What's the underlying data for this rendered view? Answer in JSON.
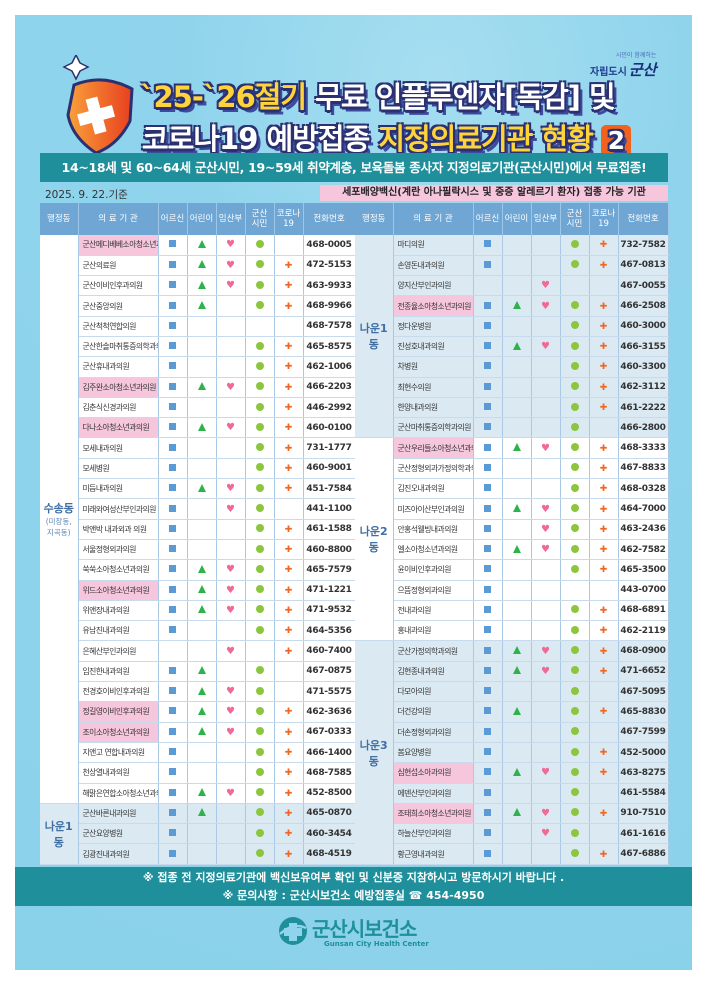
{
  "logo": {
    "slogan": "시민이 함께하는",
    "city": "자립도시",
    "brand": "군산"
  },
  "title": {
    "line1_a": "`25-`26절기",
    "line1_b": " 무료 인플루엔자[독감] 및",
    "line2_a": "코로나19 예방접종 ",
    "line2_b": "지정의료기관 현황",
    "badge": "2"
  },
  "banner": "14~18세 및 60~64세 군산시민, 19~59세 취약계층, 보육돌봄 종사자  지정의료기관(군산시민)에서 무료접종!",
  "date": "2025. 9. 22.기준",
  "egg_note": "세포배양백신(계란 아나필락시스 및 중증 알레르기 환자) 접종 가능 기관",
  "headers": [
    "행정동",
    "의 료 기 관",
    "어르신",
    "어린이",
    "임산부",
    "군산\n시민",
    "코로나\n19",
    "전화번호"
  ],
  "colors": {
    "elder": "#5b9bd5",
    "child": "#2db34a",
    "pregnant": "#f06a93",
    "citizen": "#8cc63f",
    "covid": "#f26522",
    "highlight": "#f6c6dc",
    "banner": "#1f8f9b"
  },
  "marks_legend": {
    "elder": "square-icon",
    "child": "triangle-icon",
    "pregnant": "heart-icon",
    "citizen": "circle-icon",
    "covid": "cross-icon"
  },
  "left": [
    {
      "dong": "수송동",
      "sub": "(미장동,\n지곡동)",
      "shade": "white",
      "rows": [
        {
          "name": "군산메디베베소아청소년과의원",
          "m": [
            1,
            1,
            1,
            1,
            0
          ],
          "phone": "468-0005",
          "hl": true
        },
        {
          "name": "군산의료원",
          "m": [
            1,
            1,
            1,
            1,
            1
          ],
          "phone": "472-5153"
        },
        {
          "name": "군산이비인후과의원",
          "m": [
            1,
            1,
            1,
            1,
            1
          ],
          "phone": "463-9933"
        },
        {
          "name": "군산중앙의원",
          "m": [
            1,
            1,
            0,
            1,
            1
          ],
          "phone": "468-9966"
        },
        {
          "name": "군산척척연합의원",
          "m": [
            1,
            0,
            0,
            0,
            0
          ],
          "phone": "468-7578"
        },
        {
          "name": "군산한솔마취통증의학과의원",
          "m": [
            1,
            0,
            0,
            1,
            1
          ],
          "phone": "465-8575"
        },
        {
          "name": "군산휴내과의원",
          "m": [
            1,
            0,
            0,
            1,
            1
          ],
          "phone": "462-1006"
        },
        {
          "name": "김주완소아청소년과의원",
          "m": [
            1,
            1,
            1,
            1,
            1
          ],
          "phone": "466-2203",
          "hl": true
        },
        {
          "name": "김춘식신경과의원",
          "m": [
            1,
            0,
            0,
            1,
            1
          ],
          "phone": "446-2992"
        },
        {
          "name": "다나소아청소년과의원",
          "m": [
            1,
            1,
            1,
            1,
            1
          ],
          "phone": "460-0100",
          "hl": true
        },
        {
          "name": "모세내과의원",
          "m": [
            1,
            0,
            0,
            1,
            1
          ],
          "phone": "731-1777"
        },
        {
          "name": "모세병원",
          "m": [
            1,
            0,
            0,
            1,
            1
          ],
          "phone": "460-9001"
        },
        {
          "name": "미듬내과의원",
          "m": [
            1,
            1,
            1,
            1,
            1
          ],
          "phone": "451-7584"
        },
        {
          "name": "미래와여성산부인과의원",
          "m": [
            1,
            0,
            1,
            1,
            0
          ],
          "phone": "441-1100"
        },
        {
          "name": "박앤박 내과외과 의원",
          "m": [
            1,
            0,
            0,
            1,
            1
          ],
          "phone": "461-1588"
        },
        {
          "name": "서울정형외과의원",
          "m": [
            1,
            0,
            0,
            1,
            1
          ],
          "phone": "460-8800"
        },
        {
          "name": "쑥쑥소아청소년과의원",
          "m": [
            1,
            1,
            1,
            1,
            1
          ],
          "phone": "465-7579"
        },
        {
          "name": "위드소아청소년과의원",
          "m": [
            1,
            1,
            1,
            1,
            1
          ],
          "phone": "471-1221",
          "hl": true
        },
        {
          "name": "위앤장내과의원",
          "m": [
            1,
            1,
            1,
            1,
            1
          ],
          "phone": "471-9532"
        },
        {
          "name": "유남진내과의원",
          "m": [
            1,
            0,
            0,
            1,
            1
          ],
          "phone": "464-5356"
        },
        {
          "name": "은혜산부인과의원",
          "m": [
            0,
            0,
            1,
            0,
            1
          ],
          "phone": "460-7400"
        },
        {
          "name": "임진한내과의원",
          "m": [
            1,
            1,
            0,
            1,
            0
          ],
          "phone": "467-0875"
        },
        {
          "name": "전경호이비인후과의원",
          "m": [
            1,
            1,
            1,
            1,
            0
          ],
          "phone": "471-5575"
        },
        {
          "name": "정길영이비인후과의원",
          "m": [
            1,
            1,
            1,
            1,
            1
          ],
          "phone": "462-3636",
          "hl": true
        },
        {
          "name": "조이소아청소년과의원",
          "m": [
            1,
            1,
            1,
            1,
            1
          ],
          "phone": "467-0333",
          "hl": true
        },
        {
          "name": "지앤고 연합내과의원",
          "m": [
            1,
            0,
            0,
            1,
            1
          ],
          "phone": "466-1400"
        },
        {
          "name": "천상열내과의원",
          "m": [
            1,
            0,
            0,
            1,
            1
          ],
          "phone": "468-7585"
        },
        {
          "name": "해맑은연합소아청소년과의원",
          "m": [
            1,
            1,
            1,
            1,
            1
          ],
          "phone": "452-8500"
        }
      ]
    },
    {
      "dong": "나운1동",
      "sub": "",
      "shade": "blue",
      "rows": [
        {
          "name": "군산바른내과의원",
          "m": [
            1,
            1,
            0,
            1,
            1
          ],
          "phone": "465-0870"
        },
        {
          "name": "군산요양병원",
          "m": [
            1,
            0,
            0,
            1,
            1
          ],
          "phone": "460-3454"
        },
        {
          "name": "김광진내과의원",
          "m": [
            1,
            0,
            0,
            1,
            1
          ],
          "phone": "468-4519"
        }
      ]
    }
  ],
  "right": [
    {
      "dong": "나운1동",
      "sub": "",
      "shade": "blue",
      "rows": [
        {
          "name": "마디의원",
          "m": [
            1,
            0,
            0,
            1,
            1
          ],
          "phone": "732-7582"
        },
        {
          "name": "손영돈내과의원",
          "m": [
            1,
            0,
            0,
            1,
            1
          ],
          "phone": "467-0813"
        },
        {
          "name": "양지산부인과의원",
          "m": [
            0,
            0,
            1,
            0,
            0
          ],
          "phone": "467-0055"
        },
        {
          "name": "전종율소아청소년과의원",
          "m": [
            1,
            1,
            1,
            1,
            1
          ],
          "phone": "466-2508",
          "hl": true
        },
        {
          "name": "정다운병원",
          "m": [
            1,
            0,
            0,
            1,
            1
          ],
          "phone": "460-3000"
        },
        {
          "name": "진성호내과의원",
          "m": [
            1,
            1,
            1,
            1,
            1
          ],
          "phone": "466-3155"
        },
        {
          "name": "차병원",
          "m": [
            1,
            0,
            0,
            1,
            1
          ],
          "phone": "460-3300"
        },
        {
          "name": "최현수의원",
          "m": [
            1,
            0,
            0,
            1,
            1
          ],
          "phone": "462-3112"
        },
        {
          "name": "한양내과의원",
          "m": [
            1,
            0,
            0,
            1,
            1
          ],
          "phone": "461-2222"
        },
        {
          "name": "군산마취통증의학과의원",
          "m": [
            1,
            0,
            0,
            1,
            0
          ],
          "phone": "466-2800"
        }
      ]
    },
    {
      "dong": "나운2동",
      "sub": "",
      "shade": "white",
      "rows": [
        {
          "name": "군산우리들소아청소년과의원",
          "m": [
            1,
            1,
            1,
            1,
            1
          ],
          "phone": "468-3333",
          "hl": true
        },
        {
          "name": "군산정형외과가정의학과의원",
          "m": [
            1,
            0,
            0,
            1,
            1
          ],
          "phone": "467-8833"
        },
        {
          "name": "김진오내과의원",
          "m": [
            1,
            0,
            0,
            1,
            1
          ],
          "phone": "468-0328"
        },
        {
          "name": "미즈아이산부인과의원",
          "m": [
            1,
            1,
            1,
            1,
            1
          ],
          "phone": "464-7000"
        },
        {
          "name": "안홍석웰빙내과의원",
          "m": [
            1,
            0,
            1,
            1,
            1
          ],
          "phone": "463-2436"
        },
        {
          "name": "엘소아청소년과의원",
          "m": [
            1,
            1,
            1,
            1,
            1
          ],
          "phone": "462-7582"
        },
        {
          "name": "윤이비인후과의원",
          "m": [
            1,
            0,
            0,
            1,
            1
          ],
          "phone": "465-3500"
        },
        {
          "name": "으뜸정형외과의원",
          "m": [
            1,
            0,
            0,
            0,
            0
          ],
          "phone": "443-0700"
        },
        {
          "name": "전내과의원",
          "m": [
            1,
            0,
            0,
            1,
            1
          ],
          "phone": "468-6891"
        },
        {
          "name": "홍내과의원",
          "m": [
            1,
            0,
            0,
            1,
            1
          ],
          "phone": "462-2119"
        }
      ]
    },
    {
      "dong": "나운3동",
      "sub": "",
      "shade": "blue",
      "rows": [
        {
          "name": "군산가정의학과의원",
          "m": [
            1,
            1,
            1,
            1,
            1
          ],
          "phone": "468-0900"
        },
        {
          "name": "김현종내과의원",
          "m": [
            1,
            1,
            1,
            1,
            1
          ],
          "phone": "471-6652"
        },
        {
          "name": "다모아의원",
          "m": [
            1,
            0,
            0,
            1,
            0
          ],
          "phone": "467-5095"
        },
        {
          "name": "더건강의원",
          "m": [
            1,
            1,
            0,
            1,
            1
          ],
          "phone": "465-8830"
        },
        {
          "name": "더손정형외과의원",
          "m": [
            1,
            0,
            0,
            1,
            0
          ],
          "phone": "467-7599"
        },
        {
          "name": "봄요양병원",
          "m": [
            1,
            0,
            0,
            1,
            1
          ],
          "phone": "452-5000"
        },
        {
          "name": "심현섭소아과의원",
          "m": [
            1,
            1,
            1,
            1,
            1
          ],
          "phone": "463-8275",
          "hl": true
        },
        {
          "name": "에덴산부인과의원",
          "m": [
            1,
            0,
            0,
            1,
            0
          ],
          "phone": "461-5584"
        },
        {
          "name": "조태희소아청소년과의원",
          "m": [
            1,
            1,
            1,
            1,
            1
          ],
          "phone": "910-7510",
          "hl": true
        },
        {
          "name": "하늘산부인과의원",
          "m": [
            1,
            0,
            1,
            1,
            0
          ],
          "phone": "461-1616"
        },
        {
          "name": "황근영내과의원",
          "m": [
            1,
            0,
            0,
            1,
            1
          ],
          "phone": "467-6886"
        }
      ]
    }
  ],
  "footer": {
    "line1": "※ 접종 전 지정의료기관에 백신보유여부 확인 및 신분증 지참하시고 방문하시기 바랍니다 .",
    "line2": "※ 문의사항 : 군산시보건소 예방접종실 ☎ 454-4950"
  },
  "health_center": {
    "name": "군산시보건소",
    "english": "Gunsan City Health Center"
  }
}
